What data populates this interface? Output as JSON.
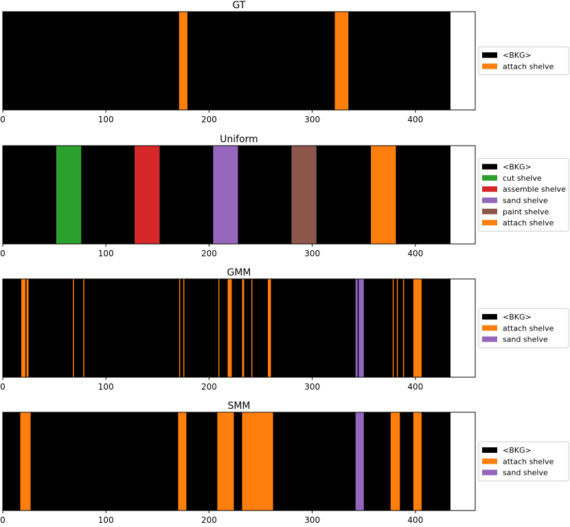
{
  "colors": {
    "<BKG>": "#000000",
    "attach shelve": "#ff7f0e",
    "cut shelve": "#2ca02c",
    "assemble shelve": "#d62728",
    "sand shelve": "#9467bd",
    "paint shelve": "#8c564b"
  },
  "chart_data": [
    {
      "type": "bar",
      "title": "GT",
      "xlim": [
        0,
        458
      ],
      "xticks": [
        0,
        100,
        200,
        300,
        400
      ],
      "legend_position": "right",
      "legend": [
        "<BKG>",
        "attach shelve"
      ],
      "segments": [
        {
          "label": "<BKG>",
          "start": 0,
          "end": 171
        },
        {
          "label": "attach shelve",
          "start": 171,
          "end": 179
        },
        {
          "label": "<BKG>",
          "start": 179,
          "end": 322
        },
        {
          "label": "attach shelve",
          "start": 322,
          "end": 335
        },
        {
          "label": "<BKG>",
          "start": 335,
          "end": 434
        }
      ]
    },
    {
      "type": "bar",
      "title": "Uniform",
      "xlim": [
        0,
        458
      ],
      "xticks": [
        0,
        100,
        200,
        300,
        400
      ],
      "legend_position": "right",
      "legend": [
        "<BKG>",
        "cut shelve",
        "assemble shelve",
        "sand shelve",
        "paint shelve",
        "attach shelve"
      ],
      "segments": [
        {
          "label": "<BKG>",
          "start": 0,
          "end": 52
        },
        {
          "label": "cut shelve",
          "start": 52,
          "end": 76
        },
        {
          "label": "<BKG>",
          "start": 76,
          "end": 128
        },
        {
          "label": "assemble shelve",
          "start": 128,
          "end": 152
        },
        {
          "label": "<BKG>",
          "start": 152,
          "end": 204
        },
        {
          "label": "sand shelve",
          "start": 204,
          "end": 228
        },
        {
          "label": "<BKG>",
          "start": 228,
          "end": 280
        },
        {
          "label": "paint shelve",
          "start": 280,
          "end": 304
        },
        {
          "label": "<BKG>",
          "start": 304,
          "end": 357
        },
        {
          "label": "attach shelve",
          "start": 357,
          "end": 381
        },
        {
          "label": "<BKG>",
          "start": 381,
          "end": 434
        }
      ]
    },
    {
      "type": "bar",
      "title": "GMM",
      "xlim": [
        0,
        458
      ],
      "xticks": [
        0,
        100,
        200,
        300,
        400
      ],
      "legend_position": "right",
      "legend": [
        "<BKG>",
        "attach shelve",
        "sand shelve"
      ],
      "segments": [
        {
          "label": "<BKG>",
          "start": 0,
          "end": 434
        },
        {
          "label": "attach shelve",
          "start": 18,
          "end": 22
        },
        {
          "label": "attach shelve",
          "start": 23,
          "end": 25
        },
        {
          "label": "attach shelve",
          "start": 68,
          "end": 69
        },
        {
          "label": "attach shelve",
          "start": 78,
          "end": 79
        },
        {
          "label": "attach shelve",
          "start": 171,
          "end": 172
        },
        {
          "label": "attach shelve",
          "start": 175,
          "end": 176
        },
        {
          "label": "attach shelve",
          "start": 209,
          "end": 210
        },
        {
          "label": "attach shelve",
          "start": 218,
          "end": 222
        },
        {
          "label": "attach shelve",
          "start": 232,
          "end": 234
        },
        {
          "label": "attach shelve",
          "start": 241,
          "end": 242
        },
        {
          "label": "attach shelve",
          "start": 257,
          "end": 260
        },
        {
          "label": "sand shelve",
          "start": 342,
          "end": 344
        },
        {
          "label": "sand shelve",
          "start": 345,
          "end": 350
        },
        {
          "label": "attach shelve",
          "start": 378,
          "end": 379
        },
        {
          "label": "attach shelve",
          "start": 382,
          "end": 383
        },
        {
          "label": "attach shelve",
          "start": 388,
          "end": 389
        },
        {
          "label": "attach shelve",
          "start": 398,
          "end": 406
        }
      ]
    },
    {
      "type": "bar",
      "title": "SMM",
      "xlim": [
        0,
        458
      ],
      "xticks": [
        0,
        100,
        200,
        300,
        400
      ],
      "legend_position": "right",
      "legend": [
        "<BKG>",
        "attach shelve",
        "sand shelve"
      ],
      "segments": [
        {
          "label": "<BKG>",
          "start": 0,
          "end": 434
        },
        {
          "label": "attach shelve",
          "start": 17,
          "end": 27
        },
        {
          "label": "attach shelve",
          "start": 170,
          "end": 178
        },
        {
          "label": "attach shelve",
          "start": 208,
          "end": 224
        },
        {
          "label": "attach shelve",
          "start": 232,
          "end": 262
        },
        {
          "label": "sand shelve",
          "start": 342,
          "end": 350
        },
        {
          "label": "attach shelve",
          "start": 376,
          "end": 385
        },
        {
          "label": "attach shelve",
          "start": 398,
          "end": 406
        }
      ]
    }
  ]
}
